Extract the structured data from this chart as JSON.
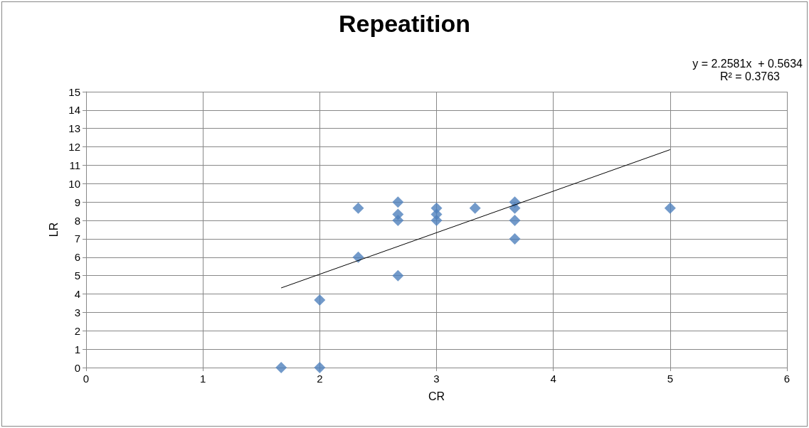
{
  "chart_data": {
    "type": "scatter",
    "title": "Repeatition",
    "xlabel": "CR",
    "ylabel": "LR",
    "annotations": [
      "y = 2.2581x  + 0.5634",
      "R² = 0.3763"
    ],
    "xlim": [
      0,
      6
    ],
    "xticks": [
      0,
      1,
      2,
      3,
      4,
      5,
      6
    ],
    "ylim": [
      0,
      15
    ],
    "yticks": [
      0,
      1,
      2,
      3,
      4,
      5,
      6,
      7,
      8,
      9,
      10,
      11,
      12,
      13,
      14,
      15
    ],
    "grid": true,
    "marker": "diamond",
    "series": [
      {
        "type": "scatter",
        "color": "#4f81bd",
        "x": [
          1.67,
          2,
          2,
          2.33,
          2.33,
          2.67,
          2.67,
          2.67,
          2.67,
          3,
          3,
          3,
          3.33,
          3.67,
          3.67,
          3.67,
          3.67,
          5
        ],
        "values": [
          0,
          0,
          3.67,
          6,
          8.67,
          5,
          8,
          8.33,
          9,
          8,
          8.33,
          8.67,
          8.67,
          7,
          8,
          8.67,
          9,
          8.67
        ]
      },
      {
        "type": "line",
        "color": "#000000",
        "marker": "none",
        "x": [
          1.67,
          5
        ],
        "values": [
          4.33,
          11.85
        ]
      }
    ]
  }
}
